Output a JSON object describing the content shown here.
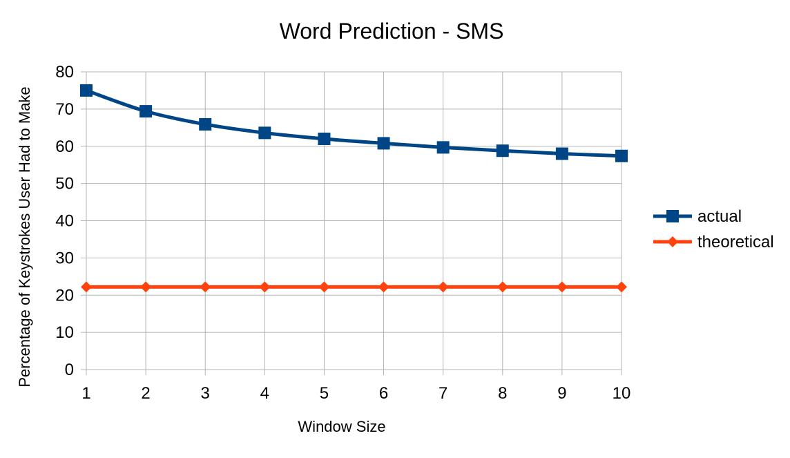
{
  "chart_data": {
    "type": "line",
    "title": "Word Prediction - SMS",
    "xlabel": "Window Size",
    "ylabel": "Percentage of Keystrokes User Had to Make",
    "x": [
      1,
      2,
      3,
      4,
      5,
      6,
      7,
      8,
      9,
      10
    ],
    "ylim": [
      0,
      80
    ],
    "yticks": [
      0,
      10,
      20,
      30,
      40,
      50,
      60,
      70,
      80
    ],
    "grid": true,
    "legend_position": "right",
    "series": [
      {
        "name": "actual",
        "color": "#004586",
        "marker": "square",
        "smooth": true,
        "values": [
          75,
          69.4,
          65.9,
          63.6,
          62,
          60.8,
          59.7,
          58.8,
          58,
          57.4
        ]
      },
      {
        "name": "theoretical",
        "color": "#ff420e",
        "marker": "diamond",
        "smooth": false,
        "values": [
          22.2,
          22.2,
          22.2,
          22.2,
          22.2,
          22.2,
          22.2,
          22.2,
          22.2,
          22.2
        ]
      }
    ]
  }
}
